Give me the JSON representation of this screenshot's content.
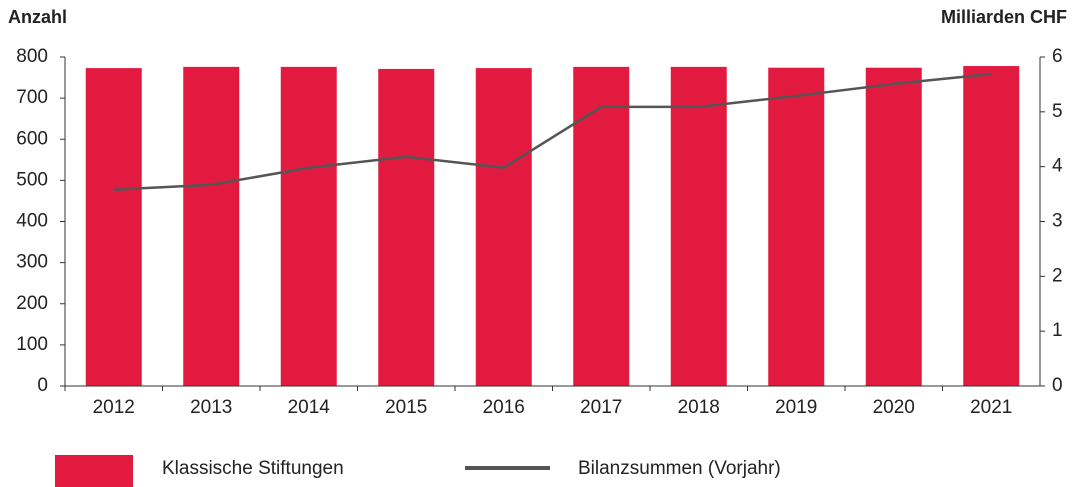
{
  "chart_data": {
    "type": "bar_line",
    "y_label": "Anzahl",
    "y2_label": "Milliarden CHF",
    "categories": [
      "2012",
      "2013",
      "2014",
      "2015",
      "2016",
      "2017",
      "2018",
      "2019",
      "2020",
      "2021"
    ],
    "series": [
      {
        "name": "Klassische Stiftungen",
        "type": "bar",
        "color": "#e31a40",
        "values": [
          773,
          776,
          776,
          771,
          773,
          776,
          776,
          774,
          774,
          778
        ]
      },
      {
        "name": "Bilanzsummen (Vorjahr)",
        "type": "line",
        "axis": "y2",
        "color": "#555555",
        "values": [
          3.58,
          3.67,
          3.98,
          4.18,
          3.98,
          5.09,
          5.09,
          5.29,
          5.51,
          5.69
        ]
      }
    ],
    "ylim": [
      0,
      800
    ],
    "yticks": [
      0,
      100,
      200,
      300,
      400,
      500,
      600,
      700,
      800
    ],
    "y2lim": [
      0,
      6
    ],
    "y2ticks": [
      0,
      1,
      2,
      3,
      4,
      5,
      6
    ]
  }
}
